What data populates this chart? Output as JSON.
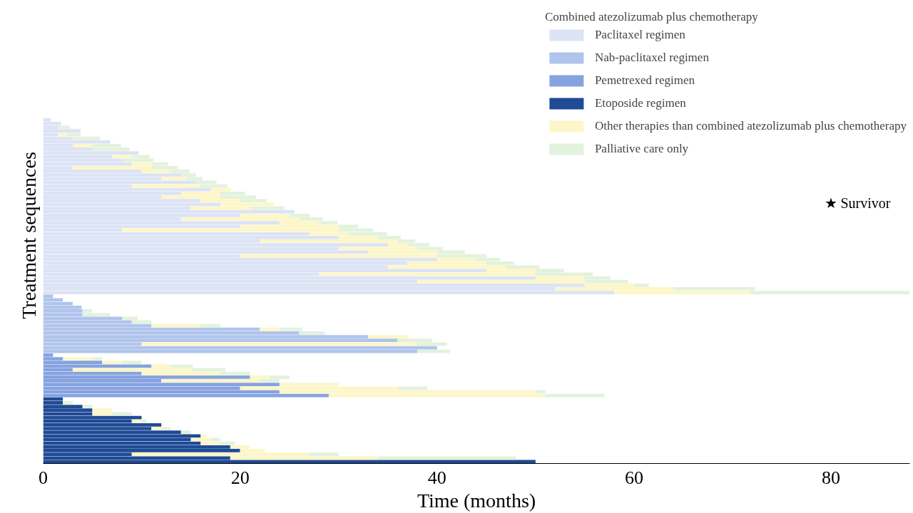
{
  "chart_data": {
    "type": "bar",
    "orientation": "horizontal",
    "stacked": true,
    "xlabel": "Time (months)",
    "ylabel": "Treatment sequences",
    "legend_title": "Combined atezolizumab plus chemotherapy",
    "legend": "top right",
    "grid": false,
    "tick_labels": "x",
    "xlim": [
      0,
      88
    ],
    "xticks": [
      0,
      20,
      40,
      60,
      80
    ],
    "annotations": [
      "★ Survivor"
    ],
    "categories": [
      null,
      null,
      null,
      null,
      null,
      null,
      null,
      null,
      null,
      null,
      null,
      null,
      null,
      null,
      null,
      null,
      null,
      null,
      null,
      null,
      null,
      null,
      null,
      null,
      null,
      null,
      null,
      null,
      null,
      null,
      null,
      null,
      null,
      null,
      null,
      null,
      null,
      null,
      null,
      null,
      null,
      null,
      null,
      null,
      null,
      null,
      null,
      null,
      null,
      null,
      null,
      null,
      null,
      null,
      null,
      null,
      null,
      null,
      null,
      null,
      null,
      null,
      null,
      null,
      null,
      null,
      null,
      null,
      null,
      null,
      null,
      null,
      null,
      null,
      null,
      null,
      null,
      null,
      null,
      null,
      null,
      null,
      null,
      null,
      null,
      null,
      null,
      null,
      null,
      null,
      null,
      null,
      null,
      null
    ],
    "series": [
      {
        "name": "Paclitaxel regimen",
        "color": "#dce3f5",
        "values": [
          0.8,
          1.8,
          1.5,
          3.8,
          1.5,
          3.0,
          6.8,
          3.0,
          5.0,
          9.7,
          7.0,
          8.0,
          9.0,
          3.0,
          10.0,
          14.0,
          12.0,
          15.6,
          9.0,
          17.0,
          14.0,
          12.0,
          16.0,
          18.0,
          15.0,
          25.5,
          20.0,
          14.0,
          24.0,
          20.0,
          8.0,
          27.0,
          30.0,
          22.0,
          35.0,
          30.0,
          33.0,
          20.0,
          40.0,
          37.0,
          35.0,
          45.0,
          28.0,
          50.0,
          38.0,
          55.0,
          52.0,
          58.0,
          null,
          null,
          null,
          null,
          null,
          null,
          null,
          null,
          null,
          null,
          null,
          null,
          null,
          null,
          null,
          null,
          null,
          null,
          null,
          null,
          null,
          null,
          null,
          null,
          null,
          null,
          null,
          null,
          null,
          null,
          null,
          null,
          null,
          null,
          null,
          null,
          null,
          null,
          null,
          null,
          null,
          null,
          null,
          null,
          null,
          null
        ]
      },
      {
        "name": "Nab-paclitaxel regimen",
        "color": "#b0c4ec",
        "values": [
          null,
          null,
          null,
          null,
          null,
          null,
          null,
          null,
          null,
          null,
          null,
          null,
          null,
          null,
          null,
          null,
          null,
          null,
          null,
          null,
          null,
          null,
          null,
          null,
          null,
          null,
          null,
          null,
          null,
          null,
          null,
          null,
          null,
          null,
          null,
          null,
          null,
          null,
          null,
          null,
          null,
          null,
          null,
          null,
          null,
          null,
          null,
          null,
          1.0,
          2.0,
          3.0,
          3.9,
          4.0,
          4.0,
          8.0,
          9.0,
          11.0,
          22.0,
          26.0,
          33.0,
          36.0,
          10.0,
          40.0,
          38.0,
          null,
          null,
          null,
          null,
          null,
          null,
          null,
          null,
          null,
          null,
          null,
          null,
          null,
          null,
          null,
          null,
          null,
          null,
          null,
          null,
          null,
          null,
          null,
          null,
          null,
          null,
          null,
          null,
          null,
          null
        ]
      },
      {
        "name": "Pemetrexed regimen",
        "color": "#86a3e0",
        "values": [
          null,
          null,
          null,
          null,
          null,
          null,
          null,
          null,
          null,
          null,
          null,
          null,
          null,
          null,
          null,
          null,
          null,
          null,
          null,
          null,
          null,
          null,
          null,
          null,
          null,
          null,
          null,
          null,
          null,
          null,
          null,
          null,
          null,
          null,
          null,
          null,
          null,
          null,
          null,
          null,
          null,
          null,
          null,
          null,
          null,
          null,
          null,
          null,
          null,
          null,
          null,
          null,
          null,
          null,
          null,
          null,
          null,
          null,
          null,
          null,
          null,
          null,
          null,
          null,
          1.0,
          2.0,
          6.0,
          11.0,
          3.0,
          10.0,
          21.0,
          12.0,
          24.0,
          20.0,
          24.0,
          29.0,
          null,
          null,
          null,
          null,
          null,
          null,
          null,
          null,
          null,
          null,
          null,
          null,
          null,
          null,
          null,
          null,
          null,
          null
        ]
      },
      {
        "name": "Etoposide regimen",
        "color": "#1f4a96",
        "values": [
          null,
          null,
          null,
          null,
          null,
          null,
          null,
          null,
          null,
          null,
          null,
          null,
          null,
          null,
          null,
          null,
          null,
          null,
          null,
          null,
          null,
          null,
          null,
          null,
          null,
          null,
          null,
          null,
          null,
          null,
          null,
          null,
          null,
          null,
          null,
          null,
          null,
          null,
          null,
          null,
          null,
          null,
          null,
          null,
          null,
          null,
          null,
          null,
          null,
          null,
          null,
          null,
          null,
          null,
          null,
          null,
          null,
          null,
          null,
          null,
          null,
          null,
          null,
          null,
          null,
          null,
          null,
          null,
          null,
          null,
          null,
          null,
          null,
          null,
          null,
          null,
          2.0,
          2.0,
          4.0,
          5.0,
          5.0,
          10.0,
          9.0,
          12.0,
          11.0,
          14.0,
          16.0,
          15.0,
          16.0,
          19.0,
          20.0,
          9.0,
          19.0,
          50.0
        ]
      },
      {
        "name": "Other therapies than combined atezolizumab plus chemotherapy",
        "color": "#fdf6c8",
        "values": [
          null,
          null,
          null,
          null,
          1.0,
          null,
          null,
          2.0,
          null,
          null,
          2.0,
          null,
          2.0,
          8.0,
          3.0,
          null,
          2.5,
          null,
          7.0,
          2.1,
          4.0,
          6.0,
          4.0,
          5.4,
          6.0,
          null,
          5.0,
          12.0,
          4.0,
          10.0,
          22.0,
          4.0,
          4.0,
          14.0,
          2.0,
          8.0,
          7.0,
          20.0,
          4.0,
          8.0,
          12.0,
          5.0,
          22.0,
          5.0,
          17.0,
          5.0,
          12.0,
          13.8,
          null,
          null,
          null,
          null,
          null,
          null,
          null,
          null,
          5.0,
          2.0,
          null,
          4.1,
          null,
          28.0,
          null,
          null,
          null,
          3.0,
          2.0,
          2.0,
          12.0,
          8.0,
          2.0,
          10.0,
          6.0,
          16.0,
          26.0,
          22.0,
          null,
          null,
          null,
          2.0,
          2.0,
          null,
          1.0,
          null,
          1.0,
          null,
          0.5,
          2.0,
          2.0,
          2.0,
          2.5,
          18.0,
          15.0,
          null
        ]
      },
      {
        "name": "Palliative care only",
        "color": "#e3f2dc",
        "values": [
          null,
          null,
          1.2,
          null,
          1.3,
          2.8,
          null,
          2.9,
          3.8,
          null,
          1.8,
          3.2,
          1.7,
          2.7,
          1.9,
          1.5,
          1.7,
          2.0,
          2.7,
          null,
          2.5,
          3.6,
          2.7,
          null,
          3.5,
          null,
          2.1,
          2.4,
          1.9,
          2.0,
          3.5,
          3.9,
          2.3,
          1.8,
          2.2,
          2.6,
          2.8,
          5.0,
          2.4,
          2.8,
          3.4,
          2.9,
          5.8,
          2.6,
          4.4,
          1.5,
          8.3,
          16.2,
          null,
          null,
          null,
          null,
          1.0,
          2.8,
          1.6,
          2.0,
          2.0,
          2.3,
          2.6,
          null,
          3.5,
          3.0,
          null,
          3.3,
          null,
          1.0,
          2.0,
          2.2,
          3.5,
          3.0,
          2.0,
          2.0,
          null,
          3.0,
          1.0,
          6.0,
          null,
          1.0,
          1.0,
          null,
          2.0,
          null,
          0.5,
          null,
          1.0,
          1.0,
          null,
          1.0,
          1.5,
          null,
          null,
          3.0,
          14.0,
          null
        ]
      }
    ]
  }
}
